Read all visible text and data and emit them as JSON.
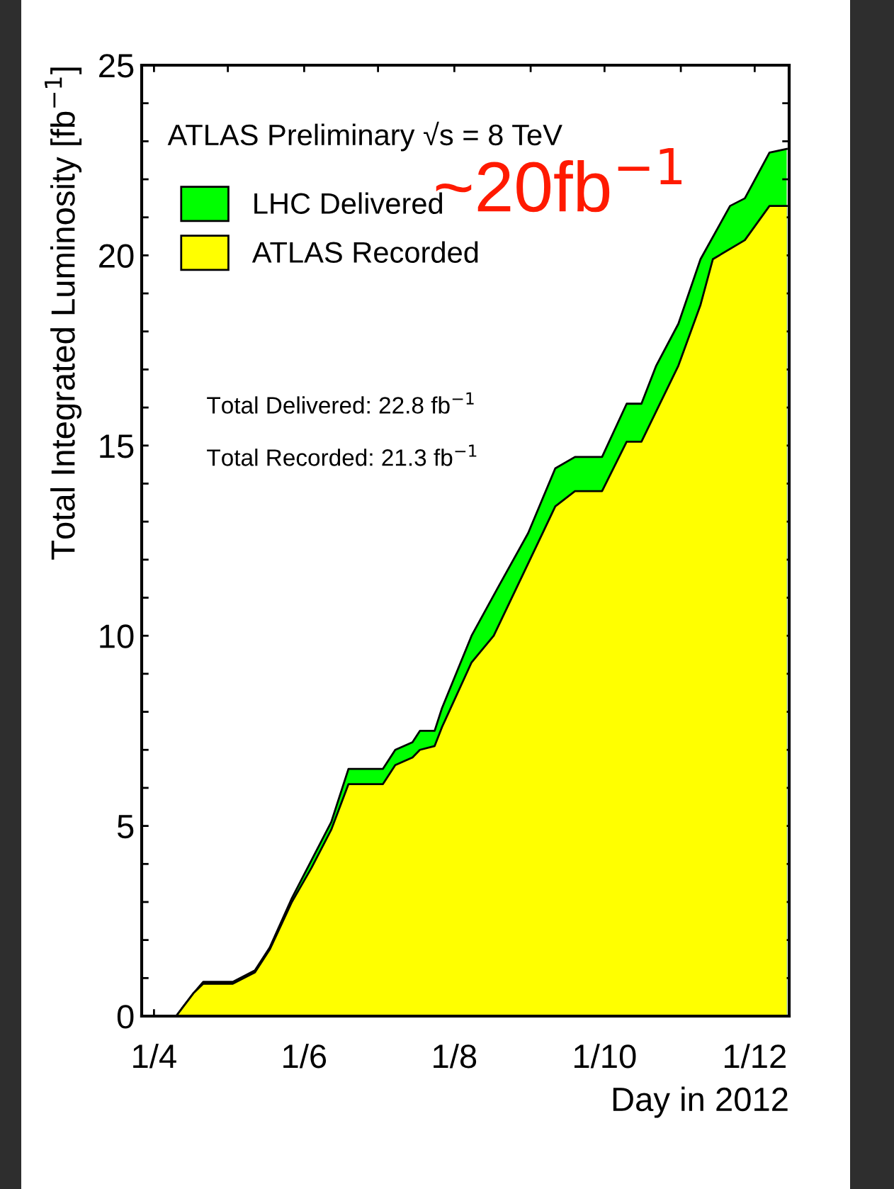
{
  "chart_data": {
    "type": "area",
    "xlabel": "Day in 2012",
    "ylabel": "Total Integrated Luminosity [fb$^{−1}$]",
    "annotations": [
      "ATLAS Preliminary √s = 8 TeV",
      "Total Delivered: 22.8 fb$^{−1}$",
      "Total Recorded: 21.3 fb$^{−1}$",
      "~20fb$^{−1}$"
    ],
    "series": [
      {
        "name": "LHC Delivered",
        "color": "#00ff00",
        "x": [
          "2012-04-10",
          "2012-04-17",
          "2012-04-21",
          "2012-05-03",
          "2012-05-12",
          "2012-05-18",
          "2012-05-27",
          "2012-06-04",
          "2012-06-12",
          "2012-06-19",
          "2012-07-03",
          "2012-07-08",
          "2012-07-15",
          "2012-07-18",
          "2012-07-24",
          "2012-07-27",
          "2012-08-08",
          "2012-08-19",
          "2012-08-31",
          "2012-09-11",
          "2012-09-19",
          "2012-09-30",
          "2012-10-10",
          "2012-10-16",
          "2012-10-22",
          "2012-10-31",
          "2012-11-09",
          "2012-11-21",
          "2012-11-27",
          "2012-12-07",
          "2012-12-14"
        ],
        "values": [
          0,
          0.6,
          0.9,
          0.9,
          1.2,
          1.8,
          3.1,
          4.1,
          5.1,
          6.5,
          6.5,
          7.0,
          7.2,
          7.5,
          7.5,
          8.1,
          10.0,
          11.3,
          12.7,
          14.4,
          14.7,
          14.7,
          16.1,
          16.1,
          17.1,
          18.2,
          19.9,
          21.3,
          21.5,
          22.7,
          22.8
        ]
      },
      {
        "name": "ATLAS Recorded",
        "color": "#ffff00",
        "x": [
          "2012-04-10",
          "2012-04-17",
          "2012-04-21",
          "2012-05-03",
          "2012-05-12",
          "2012-05-18",
          "2012-05-27",
          "2012-06-04",
          "2012-06-12",
          "2012-06-19",
          "2012-07-03",
          "2012-07-08",
          "2012-07-15",
          "2012-07-18",
          "2012-07-24",
          "2012-07-27",
          "2012-08-08",
          "2012-08-17",
          "2012-08-31",
          "2012-09-11",
          "2012-09-19",
          "2012-09-30",
          "2012-10-10",
          "2012-10-16",
          "2012-10-31",
          "2012-11-09",
          "2012-11-14",
          "2012-11-27",
          "2012-12-07",
          "2012-12-14"
        ],
        "values": [
          0,
          0.6,
          0.85,
          0.85,
          1.15,
          1.75,
          3.0,
          3.9,
          4.9,
          6.1,
          6.1,
          6.6,
          6.8,
          7.0,
          7.1,
          7.6,
          9.3,
          10.0,
          11.9,
          13.4,
          13.8,
          13.8,
          15.1,
          15.1,
          17.1,
          18.7,
          19.9,
          20.4,
          21.3,
          21.3
        ]
      }
    ],
    "xlim": [
      "2012-03-27",
      "2012-12-15"
    ],
    "xticks": [
      {
        "value": "2012-04-01",
        "label": "1/4"
      },
      {
        "value": "2012-05-01",
        "label": null
      },
      {
        "value": "2012-06-01",
        "label": "1/6"
      },
      {
        "value": "2012-07-01",
        "label": null
      },
      {
        "value": "2012-08-01",
        "label": "1/8"
      },
      {
        "value": "2012-09-01",
        "label": null
      },
      {
        "value": "2012-10-01",
        "label": "1/10"
      },
      {
        "value": "2012-11-01",
        "label": null
      },
      {
        "value": "2012-12-01",
        "label": "1/12"
      }
    ],
    "ylim": [
      0,
      25
    ],
    "yticks": [
      0,
      {
        "value": 1,
        "label": null
      },
      {
        "value": 2,
        "label": null
      },
      {
        "value": 3,
        "label": null
      },
      {
        "value": 4,
        "label": null
      },
      5,
      {
        "value": 6,
        "label": null
      },
      {
        "value": 7,
        "label": null
      },
      {
        "value": 8,
        "label": null
      },
      {
        "value": 9,
        "label": null
      },
      10,
      {
        "value": 11,
        "label": null
      },
      {
        "value": 12,
        "label": null
      },
      {
        "value": 13,
        "label": null
      },
      {
        "value": 14,
        "label": null
      },
      15,
      {
        "value": 16,
        "label": null
      },
      {
        "value": 17,
        "label": null
      },
      {
        "value": 18,
        "label": null
      },
      {
        "value": 19,
        "label": null
      },
      20,
      {
        "value": 21,
        "label": null
      },
      {
        "value": 22,
        "label": null
      },
      {
        "value": 23,
        "label": null
      },
      {
        "value": 24,
        "label": null
      },
      25
    ],
    "legend": "top left",
    "grid": false
  }
}
